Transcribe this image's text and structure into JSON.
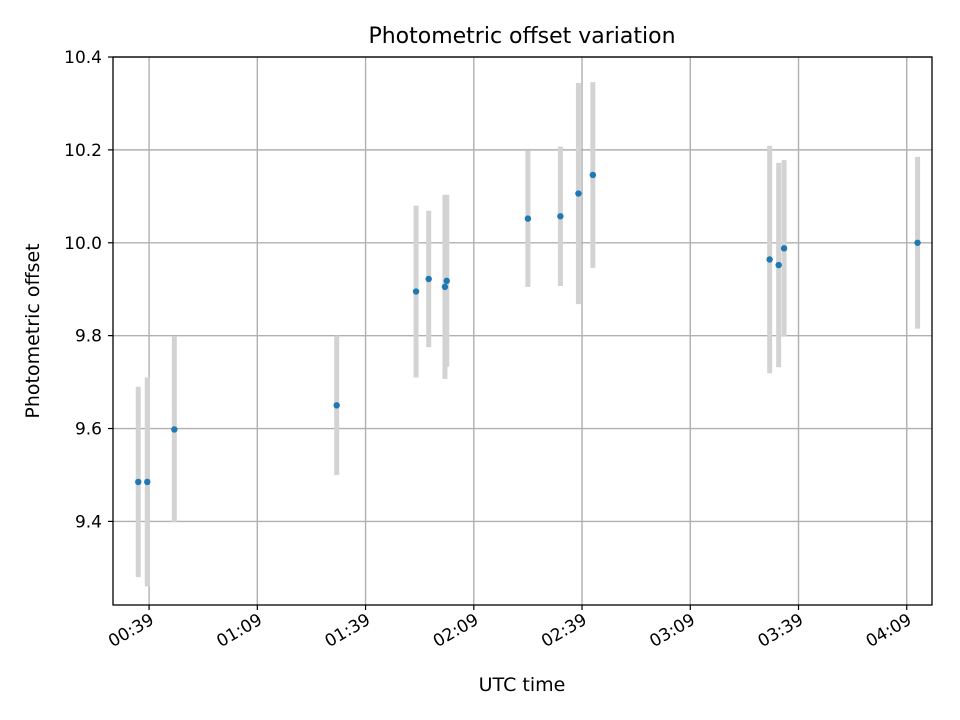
{
  "chart_data": {
    "type": "scatter",
    "title": "Photometric offset variation",
    "xlabel": "UTC time",
    "ylabel": "Photometric offset",
    "xlim": [
      "00:29",
      "04:16"
    ],
    "ylim": [
      9.22,
      10.4
    ],
    "grid": true,
    "x_ticks": [
      "00:39",
      "01:09",
      "01:39",
      "02:09",
      "02:39",
      "03:09",
      "03:39",
      "04:09"
    ],
    "y_ticks": [
      9.4,
      9.6,
      9.8,
      10.0,
      10.2,
      10.4
    ],
    "colors": {
      "point": "#1f77b4",
      "errorbar": "#d3d3d3",
      "grid": "#b0b0b0"
    },
    "points": [
      {
        "x": "00:36:00",
        "y": 9.485,
        "err": 0.205
      },
      {
        "x": "00:38:30",
        "y": 9.485,
        "err": 0.225
      },
      {
        "x": "00:46:00",
        "y": 9.598,
        "err": 0.2
      },
      {
        "x": "01:31:00",
        "y": 9.65,
        "err": 0.15
      },
      {
        "x": "01:53:00",
        "y": 9.895,
        "err": 0.185
      },
      {
        "x": "01:56:30",
        "y": 9.922,
        "err": 0.147
      },
      {
        "x": "02:01:00",
        "y": 9.905,
        "err": 0.198
      },
      {
        "x": "02:01:30",
        "y": 9.918,
        "err": 0.185
      },
      {
        "x": "02:24:00",
        "y": 10.052,
        "err": 0.147
      },
      {
        "x": "02:33:00",
        "y": 10.057,
        "err": 0.15
      },
      {
        "x": "02:38:00",
        "y": 10.106,
        "err": 0.238
      },
      {
        "x": "02:42:00",
        "y": 10.146,
        "err": 0.2
      },
      {
        "x": "03:31:00",
        "y": 9.964,
        "err": 0.245
      },
      {
        "x": "03:33:30",
        "y": 9.952,
        "err": 0.22
      },
      {
        "x": "03:35:00",
        "y": 9.988,
        "err": 0.19
      },
      {
        "x": "04:12:00",
        "y": 10.0,
        "err": 0.185
      }
    ]
  }
}
